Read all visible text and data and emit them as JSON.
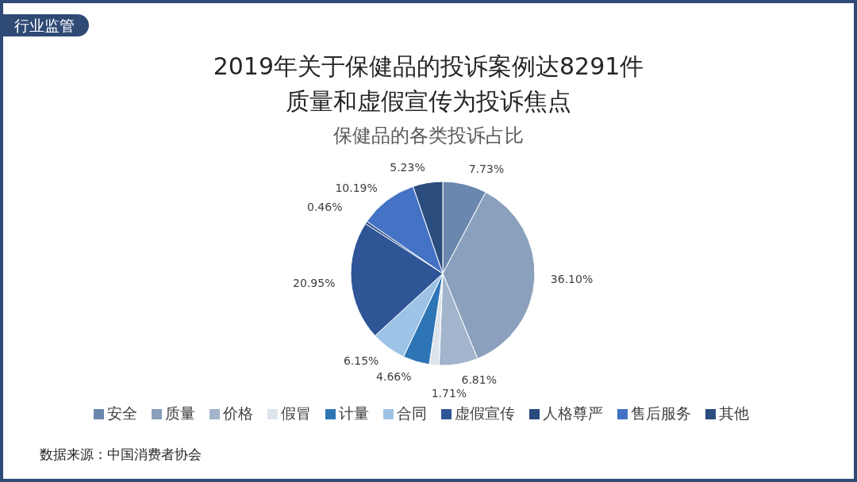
{
  "chart_data": {
    "type": "pie",
    "title": "2019年关于保健品的投诉案例达8291件",
    "subtitle": "质量和虚假宣传为投诉焦点",
    "categories": [
      "安全",
      "质量",
      "价格",
      "假冒",
      "计量",
      "合同",
      "虚假宣传",
      "人格尊严",
      "售后服务",
      "其他"
    ],
    "values": [
      7.73,
      36.1,
      6.81,
      1.71,
      4.66,
      6.15,
      20.95,
      0.46,
      10.19,
      5.23
    ],
    "value_labels": [
      "7.73%",
      "36.10%",
      "6.81%",
      "1.71%",
      "4.66%",
      "6.15%",
      "20.95%",
      "0.46%",
      "10.19%",
      "5.23%"
    ],
    "colors": [
      "#6a87ad",
      "#8aa0bd",
      "#a3b5cc",
      "#dde4ec",
      "#2e75b6",
      "#9dc3e6",
      "#2f5597",
      "#2a4a7f",
      "#4472c4",
      "#2b4d7e"
    ],
    "legend": "bottom",
    "annotations": [
      "行业监管",
      "数据来源：中国消费者协会",
      "保健品的各类投诉占比"
    ]
  }
}
